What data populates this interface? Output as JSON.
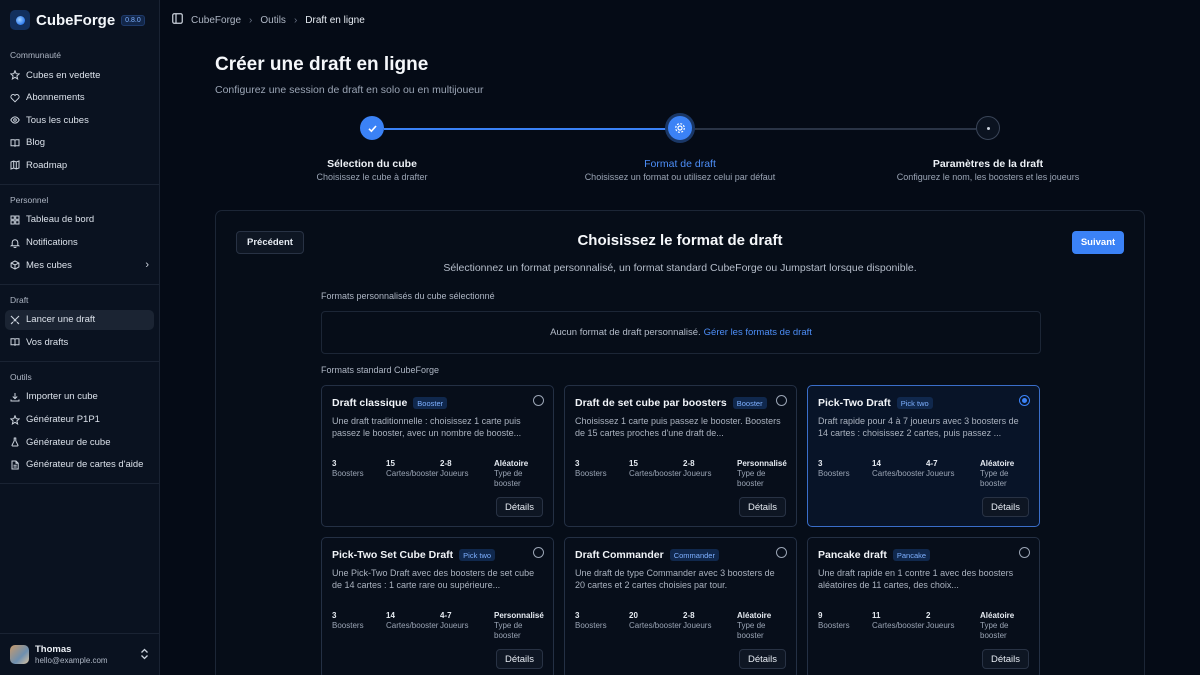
{
  "app": {
    "name": "CubeForge",
    "version": "0.8.0"
  },
  "sidebar": {
    "sections": [
      {
        "title": "Communauté",
        "items": [
          {
            "label": "Cubes en vedette",
            "icon": "star-icon"
          },
          {
            "label": "Abonnements",
            "icon": "heart-icon"
          },
          {
            "label": "Tous les cubes",
            "icon": "eye-icon"
          },
          {
            "label": "Blog",
            "icon": "book-icon"
          },
          {
            "label": "Roadmap",
            "icon": "map-icon"
          }
        ]
      },
      {
        "title": "Personnel",
        "items": [
          {
            "label": "Tableau de bord",
            "icon": "grid-icon"
          },
          {
            "label": "Notifications",
            "icon": "bell-icon"
          },
          {
            "label": "Mes cubes",
            "icon": "cube-icon",
            "chevron": true
          }
        ]
      },
      {
        "title": "Draft",
        "items": [
          {
            "label": "Lancer une draft",
            "icon": "swords-icon",
            "active": true
          },
          {
            "label": "Vos drafts",
            "icon": "book-icon"
          }
        ]
      },
      {
        "title": "Outils",
        "items": [
          {
            "label": "Importer un cube",
            "icon": "download-icon"
          },
          {
            "label": "Générateur P1P1",
            "icon": "star-icon"
          },
          {
            "label": "Générateur de cube",
            "icon": "flask-icon"
          },
          {
            "label": "Générateur de cartes d'aide",
            "icon": "file-icon"
          }
        ]
      }
    ],
    "user": {
      "name": "Thomas",
      "email": "hello@example.com"
    }
  },
  "breadcrumb": {
    "items": [
      "CubeForge",
      "Outils",
      "Draft en ligne"
    ]
  },
  "page": {
    "title": "Créer une draft en ligne",
    "subtitle": "Configurez une session de draft en solo ou en multijoueur"
  },
  "stepper": {
    "steps": [
      {
        "label": "Sélection du cube",
        "desc": "Choisissez le cube à drafter",
        "state": "done"
      },
      {
        "label": "Format de draft",
        "desc": "Choisissez un format ou utilisez celui par défaut",
        "state": "current"
      },
      {
        "label": "Paramètres de la draft",
        "desc": "Configurez le nom, les boosters et les joueurs",
        "state": "upcoming"
      }
    ]
  },
  "panel": {
    "prev_label": "Précédent",
    "next_label": "Suivant",
    "title": "Choisissez le format de draft",
    "subtitle": "Sélectionnez un format personnalisé, un format standard CubeForge ou Jumpstart lorsque disponible.",
    "custom_label": "Formats personnalisés du cube sélectionné",
    "custom_empty": "Aucun format de draft personnalisé.",
    "custom_link": "Gérer les formats de draft",
    "standard_label": "Formats standard CubeForge",
    "details_label": "Détails",
    "stat_labels": {
      "boosters": "Boosters",
      "cards": "Cartes/booster",
      "players": "Joueurs",
      "type": "Type de booster"
    }
  },
  "formats": [
    {
      "title": "Draft classique",
      "badge": "Booster",
      "desc": "Une draft traditionnelle : choisissez 1 carte puis passez le booster, avec un nombre de booste...",
      "boosters": "3",
      "cards": "15",
      "players": "2-8",
      "type": "Aléatoire",
      "selected": false
    },
    {
      "title": "Draft de set cube par boosters",
      "badge": "Booster",
      "desc": "Choisissez 1 carte puis passez le booster. Boosters de 15 cartes proches d'une draft de...",
      "boosters": "3",
      "cards": "15",
      "players": "2-8",
      "type": "Personnalisé",
      "selected": false
    },
    {
      "title": "Pick-Two Draft",
      "badge": "Pick two",
      "desc": "Draft rapide pour 4 à 7 joueurs avec 3 boosters de 14 cartes : choisissez 2 cartes, puis passez ...",
      "boosters": "3",
      "cards": "14",
      "players": "4-7",
      "type": "Aléatoire",
      "selected": true
    },
    {
      "title": "Pick-Two Set Cube Draft",
      "badge": "Pick two",
      "desc": "Une Pick-Two Draft avec des boosters de set cube de 14 cartes : 1 carte rare ou supérieure...",
      "boosters": "3",
      "cards": "14",
      "players": "4-7",
      "type": "Personnalisé",
      "selected": false
    },
    {
      "title": "Draft Commander",
      "badge": "Commander",
      "desc": "Une draft de type Commander avec 3 boosters de 20 cartes et 2 cartes choisies par tour.",
      "boosters": "3",
      "cards": "20",
      "players": "2-8",
      "type": "Aléatoire",
      "selected": false
    },
    {
      "title": "Pancake draft",
      "badge": "Pancake",
      "desc": "Une draft rapide en 1 contre 1 avec des boosters aléatoires de 11 cartes, des choix...",
      "boosters": "9",
      "cards": "11",
      "players": "2",
      "type": "Aléatoire",
      "selected": false
    }
  ],
  "colors": {
    "accent": "#3b82f6",
    "background": "#050b16",
    "sidebar": "#0a1220"
  }
}
